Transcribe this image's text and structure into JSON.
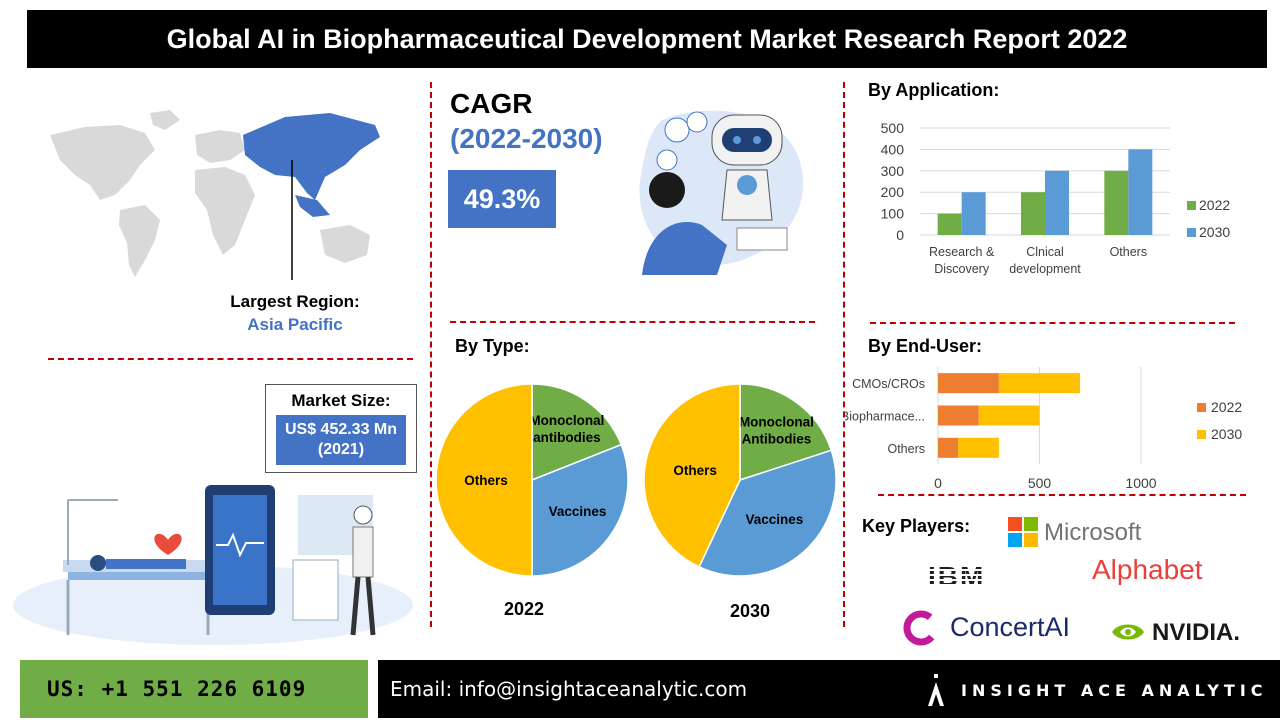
{
  "header": {
    "title": "Global AI in Biopharmaceutical Development Market Research Report 2022"
  },
  "region": {
    "label": "Largest Region:",
    "value": "Asia Pacific"
  },
  "market_size": {
    "label": "Market Size:",
    "value": "US$ 452.33 Mn (2021)"
  },
  "cagr": {
    "label": "CAGR",
    "period": "(2022-2030)",
    "value": "49.3%"
  },
  "sections": {
    "by_application": "By Application:",
    "by_type": "By Type:",
    "by_end_user": "By End-User:",
    "key_players": "Key Players:"
  },
  "colors": {
    "green": "#70ad47",
    "blue": "#5b9bd5",
    "orange": "#ed7d31",
    "yellow": "#ffc000",
    "accent_blue": "#4472c4",
    "divider_red": "#c00000"
  },
  "chart_data": [
    {
      "type": "bar",
      "title": "By Application:",
      "categories": [
        "Research & Discovery",
        "Clnical development",
        "Others"
      ],
      "category_lines": [
        [
          "Research &",
          "Discovery"
        ],
        [
          "Clnical",
          "development"
        ],
        [
          "Others"
        ]
      ],
      "series": [
        {
          "name": "2022",
          "values": [
            100,
            200,
            300
          ],
          "color": "#70ad47"
        },
        {
          "name": "2030",
          "values": [
            200,
            300,
            400
          ],
          "color": "#5b9bd5"
        }
      ],
      "ylim": [
        0,
        500
      ],
      "yticks": [
        "0",
        "100",
        "200",
        "300",
        "400",
        "500"
      ],
      "grid": true,
      "legend": "right"
    },
    {
      "type": "pie",
      "title": "2022",
      "slices": [
        {
          "label": "Monoclonal antibodies",
          "lines": [
            "Monoclonal",
            "antibodies"
          ],
          "value": 19,
          "color": "#70ad47"
        },
        {
          "label": "Vaccines",
          "lines": [
            "Vaccines"
          ],
          "value": 31,
          "color": "#5b9bd5"
        },
        {
          "label": "Others",
          "lines": [
            "Others"
          ],
          "value": 50,
          "color": "#ffc000"
        }
      ]
    },
    {
      "type": "pie",
      "title": "2030",
      "slices": [
        {
          "label": "Monoclonal Antibodies",
          "lines": [
            "Monoclonal",
            "Antibodies"
          ],
          "value": 20,
          "color": "#70ad47"
        },
        {
          "label": "Vaccines",
          "lines": [
            "Vaccines"
          ],
          "value": 37,
          "color": "#5b9bd5"
        },
        {
          "label": "Others",
          "lines": [
            "Others"
          ],
          "value": 43,
          "color": "#ffc000"
        }
      ]
    },
    {
      "type": "bar",
      "orientation": "horizontal",
      "stacked": true,
      "title": "By End-User:",
      "categories": [
        "CMOs/CROs",
        "Biopharmace...",
        "Others"
      ],
      "series": [
        {
          "name": "2022",
          "values": [
            300,
            200,
            100
          ],
          "color": "#ed7d31"
        },
        {
          "name": "2030",
          "values": [
            400,
            300,
            200
          ],
          "color": "#ffc000"
        }
      ],
      "xlim": [
        0,
        1000
      ],
      "xticks": [
        "0",
        "500",
        "1000"
      ],
      "grid": true,
      "legend": "right"
    }
  ],
  "key_players": [
    "Microsoft",
    "IBM",
    "Alphabet",
    "ConcertAI",
    "NVIDIA."
  ],
  "footer": {
    "phone": "US: +1 551 226 6109",
    "email": "Email: info@insightaceanalytic.com",
    "brand": "INSIGHT ACE ANALYTIC"
  }
}
